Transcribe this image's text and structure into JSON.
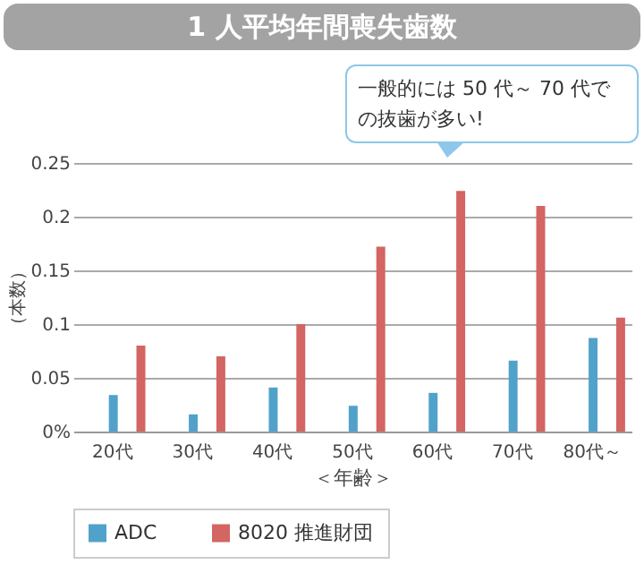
{
  "chart_data": {
    "type": "bar",
    "title": "1 人平均年間喪失歯数",
    "xlabel": "＜年齢＞",
    "ylabel": "（本数）",
    "annotations": [
      "一般的には 50 代～ 70 代での抜歯が多い!"
    ],
    "categories": [
      "20代",
      "30代",
      "40代",
      "50代",
      "60代",
      "70代",
      "80代～"
    ],
    "series": [
      {
        "name": "ADC",
        "color": "#51a2cb",
        "values": [
          0.034,
          0.016,
          0.041,
          0.024,
          0.036,
          0.066,
          0.087
        ]
      },
      {
        "name": "8020 推進財団",
        "color": "#d36563",
        "values": [
          0.08,
          0.07,
          0.1,
          0.172,
          0.224,
          0.21,
          0.106
        ]
      }
    ],
    "ylim": [
      0,
      0.25
    ],
    "yticks": [
      {
        "value": 0,
        "label": "0%"
      },
      0.05,
      0.1,
      0.15,
      0.2,
      0.25
    ],
    "grid": "y",
    "legend": "bottom"
  }
}
